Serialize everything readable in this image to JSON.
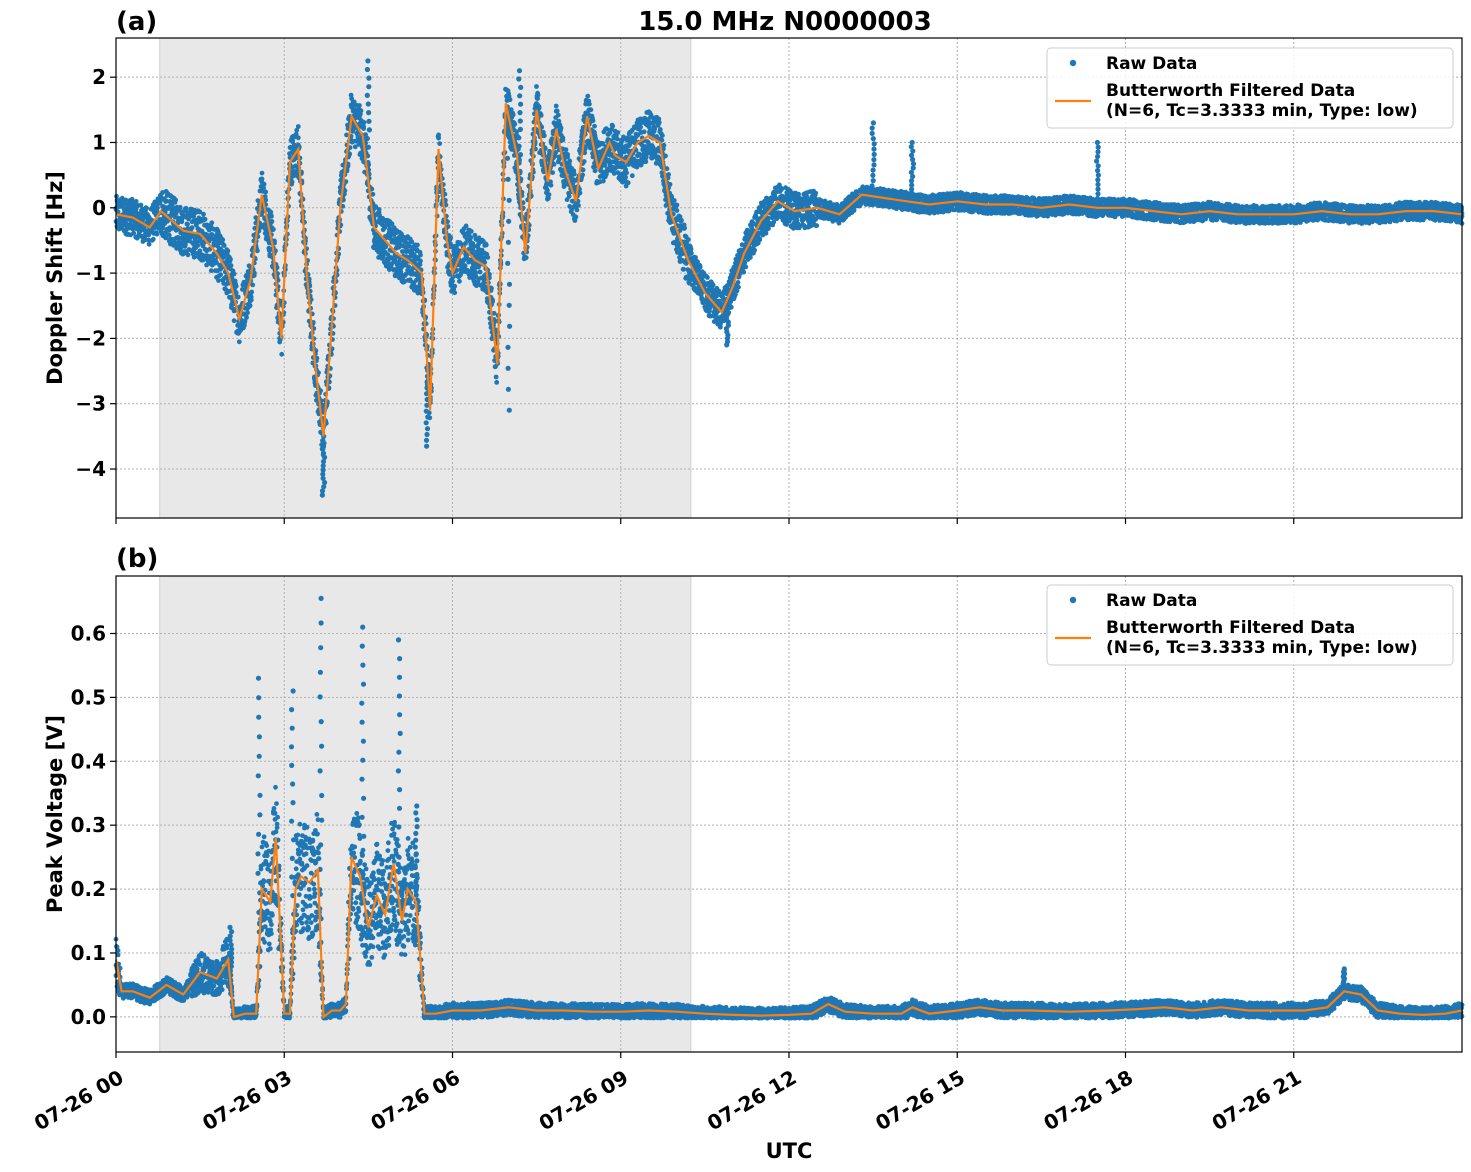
{
  "figure": {
    "title": "15.0 MHz N0000003",
    "xlabel": "UTC"
  },
  "chart_data": [
    {
      "panel": "(a)",
      "type": "scatter",
      "title": "15.0 MHz N0000003",
      "xlabel": "UTC",
      "ylabel": "Doppler Shift [Hz]",
      "xlim_hours": [
        0,
        24
      ],
      "ylim": [
        -4.75,
        2.6
      ],
      "x_ticks": [
        "07-26 00",
        "07-26 03",
        "07-26 06",
        "07-26 09",
        "07-26 12",
        "07-26 15",
        "07-26 18",
        "07-26 21"
      ],
      "x_tick_hours": [
        0,
        3,
        6,
        9,
        12,
        15,
        18,
        21
      ],
      "y_ticks": [
        2,
        1,
        0,
        -1,
        -2,
        -3,
        -4
      ],
      "y_tick_labels": [
        "2",
        "1",
        "0",
        "−1",
        "−2",
        "−3",
        "−4"
      ],
      "grid": true,
      "legend_position": "top-right",
      "shaded_interval_hours": [
        0.78,
        10.25
      ],
      "series": [
        {
          "name": "Raw Data",
          "style": "points",
          "color": "#1f77b4",
          "x_hours": [
            0,
            0.3,
            0.6,
            0.8,
            1.0,
            1.2,
            1.5,
            1.8,
            2.0,
            2.2,
            2.4,
            2.6,
            2.8,
            2.95,
            3.1,
            3.25,
            3.4,
            3.55,
            3.7,
            3.85,
            4.0,
            4.2,
            4.4,
            4.6,
            4.8,
            5.0,
            5.2,
            5.45,
            5.6,
            5.75,
            5.9,
            6.0,
            6.2,
            6.4,
            6.6,
            6.8,
            6.95,
            7.15,
            7.3,
            7.5,
            7.7,
            7.85,
            8.0,
            8.2,
            8.4,
            8.6,
            8.8,
            8.9,
            9.1,
            9.3,
            9.5,
            9.7,
            9.9,
            10.2,
            10.5,
            10.8,
            11.0,
            11.2,
            11.5,
            11.8,
            12.1,
            12.5,
            12.9,
            13.3,
            13.7,
            14.1,
            14.5,
            15.0,
            15.5,
            16.0,
            16.5,
            17.0,
            17.5,
            18.0,
            18.5,
            19.0,
            19.5,
            20.0,
            20.5,
            21.0,
            21.5,
            22.0,
            22.5,
            23.0,
            23.5,
            24.0
          ],
          "values": [
            -0.1,
            -0.15,
            -0.3,
            -0.05,
            -0.2,
            -0.35,
            -0.4,
            -0.7,
            -1.0,
            -1.7,
            -1.1,
            0.2,
            -0.6,
            -2.0,
            0.7,
            0.9,
            -1.0,
            -2.4,
            -3.5,
            -1.8,
            0.0,
            1.4,
            1.1,
            -0.3,
            -0.5,
            -0.7,
            -0.8,
            -1.0,
            -3.1,
            0.9,
            -0.5,
            -1.0,
            -0.6,
            -0.8,
            -0.9,
            -2.4,
            1.6,
            0.8,
            -0.7,
            1.5,
            0.4,
            1.2,
            0.6,
            0.1,
            1.4,
            0.6,
            1.0,
            0.8,
            0.7,
            1.0,
            1.1,
            1.0,
            -0.1,
            -0.8,
            -1.3,
            -1.6,
            -1.2,
            -0.7,
            -0.2,
            0.1,
            -0.05,
            0.0,
            -0.1,
            0.2,
            0.15,
            0.1,
            0.05,
            0.1,
            0.05,
            0.05,
            0.0,
            0.05,
            0.0,
            0.0,
            -0.05,
            -0.1,
            -0.05,
            -0.1,
            -0.1,
            -0.1,
            -0.05,
            -0.1,
            -0.1,
            -0.05,
            -0.05,
            -0.1
          ]
        },
        {
          "name": "Butterworth Filtered Data\n(N=6, Tc=3.3333 min, Type: low)",
          "style": "line",
          "color": "#ff7f0e",
          "x_hours": [
            0,
            0.3,
            0.6,
            0.8,
            1.0,
            1.2,
            1.5,
            1.8,
            2.0,
            2.2,
            2.4,
            2.6,
            2.8,
            2.95,
            3.1,
            3.25,
            3.4,
            3.55,
            3.7,
            3.85,
            4.0,
            4.2,
            4.4,
            4.6,
            4.8,
            5.0,
            5.2,
            5.45,
            5.6,
            5.75,
            5.9,
            6.0,
            6.2,
            6.4,
            6.6,
            6.8,
            6.95,
            7.15,
            7.3,
            7.5,
            7.7,
            7.85,
            8.0,
            8.2,
            8.4,
            8.6,
            8.8,
            8.9,
            9.1,
            9.3,
            9.5,
            9.7,
            9.9,
            10.2,
            10.5,
            10.8,
            11.0,
            11.2,
            11.5,
            11.8,
            12.1,
            12.5,
            12.9,
            13.3,
            13.7,
            14.1,
            14.5,
            15.0,
            15.5,
            16.0,
            16.5,
            17.0,
            17.5,
            18.0,
            18.5,
            19.0,
            19.5,
            20.0,
            20.5,
            21.0,
            21.5,
            22.0,
            22.5,
            23.0,
            23.5,
            24.0
          ],
          "values": [
            -0.1,
            -0.15,
            -0.3,
            -0.05,
            -0.2,
            -0.35,
            -0.4,
            -0.7,
            -1.0,
            -1.7,
            -1.1,
            0.2,
            -0.6,
            -2.0,
            0.7,
            0.9,
            -1.0,
            -2.4,
            -3.5,
            -1.8,
            0.0,
            1.4,
            1.1,
            -0.3,
            -0.5,
            -0.7,
            -0.8,
            -1.0,
            -3.1,
            0.9,
            -0.5,
            -1.0,
            -0.6,
            -0.8,
            -0.9,
            -2.4,
            1.6,
            0.8,
            -0.7,
            1.5,
            0.4,
            1.2,
            0.6,
            0.1,
            1.4,
            0.6,
            1.0,
            0.8,
            0.7,
            1.0,
            1.1,
            1.0,
            -0.1,
            -0.8,
            -1.3,
            -1.6,
            -1.2,
            -0.7,
            -0.2,
            0.1,
            -0.05,
            0.0,
            -0.1,
            0.2,
            0.15,
            0.1,
            0.05,
            0.1,
            0.05,
            0.05,
            0.0,
            0.05,
            0.0,
            0.0,
            -0.05,
            -0.1,
            -0.05,
            -0.1,
            -0.1,
            -0.1,
            -0.05,
            -0.1,
            -0.1,
            -0.05,
            -0.05,
            -0.1
          ]
        }
      ]
    },
    {
      "panel": "(b)",
      "type": "scatter",
      "title": "",
      "xlabel": "UTC",
      "ylabel": "Peak Voltage [V]",
      "xlim_hours": [
        0,
        24
      ],
      "ylim": [
        -0.055,
        0.69
      ],
      "x_ticks": [
        "07-26 00",
        "07-26 03",
        "07-26 06",
        "07-26 09",
        "07-26 12",
        "07-26 15",
        "07-26 18",
        "07-26 21"
      ],
      "x_tick_hours": [
        0,
        3,
        6,
        9,
        12,
        15,
        18,
        21
      ],
      "y_ticks": [
        0.6,
        0.5,
        0.4,
        0.3,
        0.2,
        0.1,
        0.0
      ],
      "y_tick_labels": [
        "0.6",
        "0.5",
        "0.4",
        "0.3",
        "0.2",
        "0.1",
        "0.0"
      ],
      "grid": true,
      "legend_position": "top-right",
      "shaded_interval_hours": [
        0.78,
        10.25
      ],
      "series": [
        {
          "name": "Raw Data",
          "style": "points",
          "color": "#1f77b4",
          "x_hours": [
            0,
            0.1,
            0.3,
            0.6,
            0.9,
            1.2,
            1.5,
            1.8,
            2.0,
            2.1,
            2.3,
            2.5,
            2.6,
            2.75,
            2.85,
            3.0,
            3.1,
            3.2,
            3.3,
            3.45,
            3.6,
            3.7,
            3.85,
            4.0,
            4.1,
            4.2,
            4.35,
            4.5,
            4.65,
            4.8,
            4.95,
            5.1,
            5.2,
            5.35,
            5.5,
            5.7,
            6.0,
            6.5,
            7.0,
            7.5,
            8.0,
            8.5,
            9.0,
            9.5,
            10.0,
            10.5,
            11.0,
            11.5,
            12.0,
            12.4,
            12.7,
            13.0,
            13.5,
            14.0,
            14.2,
            14.5,
            15.0,
            15.4,
            15.8,
            16.3,
            17.0,
            17.7,
            18.2,
            18.7,
            19.2,
            19.7,
            20.2,
            20.7,
            21.2,
            21.6,
            21.9,
            22.2,
            22.5,
            22.9,
            23.3,
            23.7,
            24.0
          ],
          "values": [
            0.09,
            0.04,
            0.04,
            0.03,
            0.05,
            0.035,
            0.07,
            0.06,
            0.09,
            0.0,
            0.005,
            0.005,
            0.2,
            0.18,
            0.28,
            0.005,
            0.005,
            0.2,
            0.22,
            0.21,
            0.23,
            0.0,
            0.01,
            0.01,
            0.02,
            0.25,
            0.22,
            0.14,
            0.19,
            0.16,
            0.24,
            0.15,
            0.2,
            0.18,
            0.005,
            0.005,
            0.01,
            0.01,
            0.015,
            0.01,
            0.01,
            0.008,
            0.008,
            0.01,
            0.008,
            0.005,
            0.003,
            0.002,
            0.003,
            0.005,
            0.02,
            0.008,
            0.005,
            0.005,
            0.015,
            0.005,
            0.01,
            0.015,
            0.01,
            0.01,
            0.008,
            0.01,
            0.012,
            0.015,
            0.01,
            0.015,
            0.01,
            0.01,
            0.01,
            0.015,
            0.04,
            0.035,
            0.01,
            0.005,
            0.003,
            0.005,
            0.01
          ]
        },
        {
          "name": "Butterworth Filtered Data\n(N=6, Tc=3.3333 min, Type: low)",
          "style": "line",
          "color": "#ff7f0e",
          "x_hours": [
            0,
            0.1,
            0.3,
            0.6,
            0.9,
            1.2,
            1.5,
            1.8,
            2.0,
            2.1,
            2.3,
            2.5,
            2.6,
            2.75,
            2.85,
            3.0,
            3.1,
            3.2,
            3.3,
            3.45,
            3.6,
            3.7,
            3.85,
            4.0,
            4.1,
            4.2,
            4.35,
            4.5,
            4.65,
            4.8,
            4.95,
            5.1,
            5.2,
            5.35,
            5.5,
            5.7,
            6.0,
            6.5,
            7.0,
            7.5,
            8.0,
            8.5,
            9.0,
            9.5,
            10.0,
            10.5,
            11.0,
            11.5,
            12.0,
            12.4,
            12.7,
            13.0,
            13.5,
            14.0,
            14.2,
            14.5,
            15.0,
            15.4,
            15.8,
            16.3,
            17.0,
            17.7,
            18.2,
            18.7,
            19.2,
            19.7,
            20.2,
            20.7,
            21.2,
            21.6,
            21.9,
            22.2,
            22.5,
            22.9,
            23.3,
            23.7,
            24.0
          ],
          "values": [
            0.09,
            0.04,
            0.04,
            0.03,
            0.05,
            0.035,
            0.07,
            0.06,
            0.09,
            0.0,
            0.005,
            0.005,
            0.2,
            0.18,
            0.28,
            0.005,
            0.005,
            0.2,
            0.22,
            0.21,
            0.23,
            0.0,
            0.01,
            0.01,
            0.02,
            0.25,
            0.22,
            0.14,
            0.19,
            0.16,
            0.24,
            0.15,
            0.2,
            0.18,
            0.005,
            0.005,
            0.01,
            0.01,
            0.015,
            0.01,
            0.01,
            0.008,
            0.008,
            0.01,
            0.008,
            0.005,
            0.003,
            0.002,
            0.003,
            0.005,
            0.02,
            0.008,
            0.005,
            0.005,
            0.015,
            0.005,
            0.01,
            0.015,
            0.01,
            0.01,
            0.008,
            0.01,
            0.012,
            0.015,
            0.01,
            0.015,
            0.01,
            0.01,
            0.01,
            0.015,
            0.04,
            0.035,
            0.01,
            0.005,
            0.003,
            0.005,
            0.01
          ]
        }
      ]
    }
  ],
  "legend": {
    "raw_label": "Raw Data",
    "filtered_line1": "Butterworth Filtered Data",
    "filtered_line2": "(N=6, Tc=3.3333 min, Type: low)"
  }
}
